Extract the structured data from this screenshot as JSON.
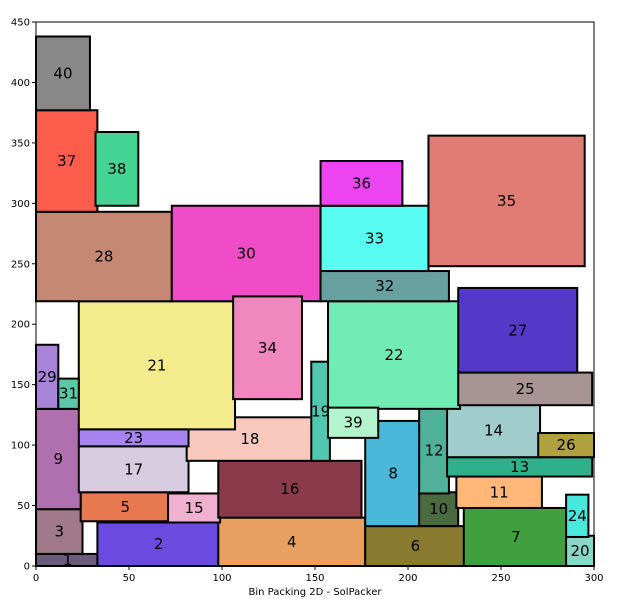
{
  "chart_data": {
    "type": "bin-packing-rectangles",
    "xlabel": "Bin Packing 2D - SolPacker",
    "xlim": [
      0,
      300
    ],
    "ylim": [
      0,
      450
    ],
    "xticks": [
      "0",
      "50",
      "100",
      "150",
      "200",
      "250",
      "300"
    ],
    "yticks": [
      "0",
      "50",
      "100",
      "150",
      "200",
      "250",
      "300",
      "350",
      "400",
      "450"
    ],
    "items": [
      {
        "id": "1",
        "x": 0,
        "y": 0,
        "w": 34,
        "h": 10,
        "color": "#6b5b7b"
      },
      {
        "id": "2",
        "x": 33,
        "y": 0,
        "w": 66,
        "h": 36,
        "color": "#6b4bdf"
      },
      {
        "id": "3",
        "x": 0,
        "y": 10,
        "w": 25,
        "h": 37,
        "color": "#a07a8a"
      },
      {
        "id": "4",
        "x": 98,
        "y": 0,
        "w": 79,
        "h": 40,
        "color": "#e8a060"
      },
      {
        "id": "5",
        "x": 24,
        "y": 37,
        "w": 48,
        "h": 24,
        "color": "#e87850"
      },
      {
        "id": "6",
        "x": 177,
        "y": 0,
        "w": 54,
        "h": 33,
        "color": "#8a7a30"
      },
      {
        "id": "7",
        "x": 230,
        "y": 0,
        "w": 56,
        "h": 48,
        "color": "#40a040"
      },
      {
        "id": "8",
        "x": 177,
        "y": 33,
        "w": 30,
        "h": 87,
        "color": "#4ab8d8"
      },
      {
        "id": "9",
        "x": 0,
        "y": 47,
        "w": 24,
        "h": 83,
        "color": "#b070b0"
      },
      {
        "id": "10",
        "x": 206,
        "y": 33,
        "w": 21,
        "h": 28,
        "color": "#4a6a40"
      },
      {
        "id": "11",
        "x": 226,
        "y": 48,
        "w": 46,
        "h": 26,
        "color": "#ffb878"
      },
      {
        "id": "12",
        "x": 206,
        "y": 60,
        "w": 16,
        "h": 71,
        "color": "#50b09a"
      },
      {
        "id": "13",
        "x": 221,
        "y": 74,
        "w": 78,
        "h": 16,
        "color": "#30b08a"
      },
      {
        "id": "14",
        "x": 221,
        "y": 90,
        "w": 50,
        "h": 44,
        "color": "#a0cccc"
      },
      {
        "id": "15",
        "x": 71,
        "y": 36,
        "w": 28,
        "h": 24,
        "color": "#f0b0d0"
      },
      {
        "id": "16",
        "x": 98,
        "y": 40,
        "w": 77,
        "h": 47,
        "color": "#8a3a4a"
      },
      {
        "id": "17",
        "x": 23,
        "y": 61,
        "w": 59,
        "h": 38,
        "color": "#d8cce0"
      },
      {
        "id": "18",
        "x": 81,
        "y": 87,
        "w": 68,
        "h": 36,
        "color": "#f8c8bc"
      },
      {
        "id": "19",
        "x": 148,
        "y": 87,
        "w": 10,
        "h": 82,
        "color": "#50c8b0"
      },
      {
        "id": "20",
        "x": 285,
        "y": 0,
        "w": 15,
        "h": 25,
        "color": "#88d8c8"
      },
      {
        "id": "21",
        "x": 23,
        "y": 113,
        "w": 84,
        "h": 106,
        "color": "#f4ec8c"
      },
      {
        "id": "22",
        "x": 157,
        "y": 130,
        "w": 71,
        "h": 89,
        "color": "#70ecb4"
      },
      {
        "id": "23",
        "x": 23,
        "y": 99,
        "w": 59,
        "h": 14,
        "color": "#a884f0"
      },
      {
        "id": "24",
        "x": 285,
        "y": 24,
        "w": 12,
        "h": 35,
        "color": "#48e8dc"
      },
      {
        "id": "25",
        "x": 227,
        "y": 133,
        "w": 72,
        "h": 27,
        "color": "#a89494"
      },
      {
        "id": "26",
        "x": 270,
        "y": 90,
        "w": 30,
        "h": 20,
        "color": "#b0a040"
      },
      {
        "id": "27",
        "x": 227,
        "y": 160,
        "w": 64,
        "h": 70,
        "color": "#5438c8"
      },
      {
        "id": "28",
        "x": 0,
        "y": 219,
        "w": 73,
        "h": 74,
        "color": "#c48874"
      },
      {
        "id": "29",
        "x": 0,
        "y": 130,
        "w": 12,
        "h": 53,
        "color": "#a884d8"
      },
      {
        "id": "30",
        "x": 73,
        "y": 219,
        "w": 80,
        "h": 79,
        "color": "#f04cc8"
      },
      {
        "id": "31",
        "x": 12,
        "y": 130,
        "w": 11,
        "h": 25,
        "color": "#5cc8a8"
      },
      {
        "id": "32",
        "x": 153,
        "y": 219,
        "w": 69,
        "h": 25,
        "color": "#68a0a0"
      },
      {
        "id": "33",
        "x": 153,
        "y": 244,
        "w": 58,
        "h": 54,
        "color": "#58fcf0"
      },
      {
        "id": "34",
        "x": 106,
        "y": 138,
        "w": 37,
        "h": 85,
        "color": "#f088c0"
      },
      {
        "id": "35",
        "x": 211,
        "y": 248,
        "w": 84,
        "h": 108,
        "color": "#e07c74"
      },
      {
        "id": "36",
        "x": 153,
        "y": 298,
        "w": 44,
        "h": 37,
        "color": "#ec44f0"
      },
      {
        "id": "37",
        "x": 0,
        "y": 293,
        "w": 33,
        "h": 84,
        "color": "#fc5c4c"
      },
      {
        "id": "38",
        "x": 32,
        "y": 298,
        "w": 23,
        "h": 61,
        "color": "#44d494"
      },
      {
        "id": "39",
        "x": 157,
        "y": 106,
        "w": 27,
        "h": 25,
        "color": "#b4f4cc"
      },
      {
        "id": "40",
        "x": 0,
        "y": 377,
        "w": 29,
        "h": 61,
        "color": "#888888"
      }
    ]
  }
}
